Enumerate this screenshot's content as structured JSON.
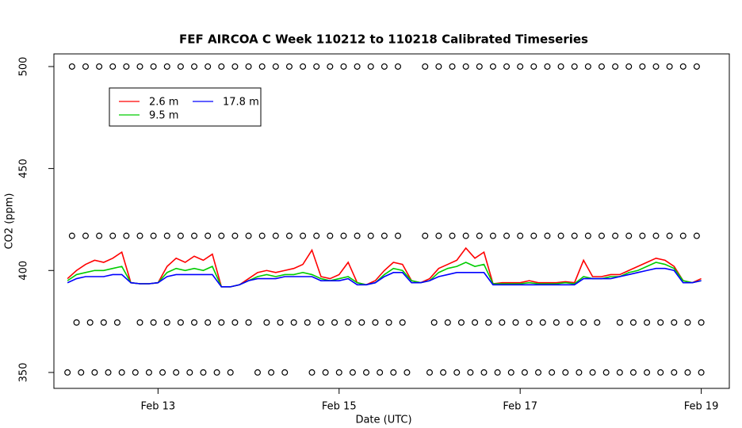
{
  "chart_data": {
    "type": "line",
    "title": "FEF AIRCOA C  Week 110212 to 110218  Calibrated Timeseries",
    "x_label": "Date (UTC)",
    "y_label": "CO2 (ppm)",
    "xlim": [
      11.85,
      19.31
    ],
    "ylim": [
      342.2,
      506.2
    ],
    "xticks": [
      {
        "value": 13,
        "label": "Feb 13"
      },
      {
        "value": 15,
        "label": "Feb 15"
      },
      {
        "value": 17,
        "label": "Feb 17"
      },
      {
        "value": 19,
        "label": "Feb 19"
      }
    ],
    "yticks": [
      350,
      400,
      450,
      500
    ],
    "legend": "topleft",
    "x": [
      12.0,
      12.1,
      12.2,
      12.3,
      12.4,
      12.5,
      12.6,
      12.7,
      12.8,
      12.9,
      13.0,
      13.1,
      13.2,
      13.3,
      13.4,
      13.5,
      13.6,
      13.7,
      13.8,
      13.9,
      14.0,
      14.1,
      14.2,
      14.3,
      14.4,
      14.5,
      14.6,
      14.7,
      14.8,
      14.9,
      15.0,
      15.1,
      15.2,
      15.3,
      15.4,
      15.5,
      15.6,
      15.7,
      15.8,
      15.9,
      16.0,
      16.1,
      16.2,
      16.3,
      16.4,
      16.5,
      16.6,
      16.7,
      16.8,
      16.9,
      17.0,
      17.1,
      17.2,
      17.3,
      17.4,
      17.5,
      17.6,
      17.7,
      17.8,
      17.9,
      18.0,
      18.1,
      18.2,
      18.3,
      18.4,
      18.5,
      18.6,
      18.7,
      18.8,
      18.9,
      19.0
    ],
    "series": [
      {
        "name": "2.6 m",
        "color": "#ff0000",
        "mode": "line",
        "values": [
          396,
          400,
          403,
          405,
          404,
          406,
          409,
          394,
          393.5,
          393.5,
          394,
          402,
          406,
          404,
          407,
          405,
          408,
          392,
          392,
          393,
          396,
          399,
          400,
          399,
          400,
          401,
          403,
          410,
          397,
          396,
          398,
          404,
          394,
          393,
          395,
          400,
          404,
          403,
          395,
          394,
          396,
          401,
          403,
          405,
          411,
          406,
          409,
          393.5,
          394,
          394,
          394,
          395,
          394,
          394,
          394,
          394.5,
          394,
          405,
          397,
          397,
          398,
          398,
          400,
          402,
          404,
          406,
          405,
          402,
          395,
          394,
          396
        ]
      },
      {
        "name": "9.5 m",
        "color": "#00cc00",
        "mode": "line",
        "values": [
          395,
          398,
          399,
          400,
          400,
          401,
          402,
          394,
          393.5,
          393.5,
          394,
          399,
          401,
          400,
          401,
          400,
          402,
          392,
          392,
          393,
          395,
          397,
          398,
          397,
          398,
          398,
          399,
          398,
          396,
          395,
          396,
          397,
          394,
          393,
          394,
          398,
          401,
          400,
          395,
          394,
          395,
          399,
          401,
          402,
          404,
          402,
          403,
          393.5,
          393.5,
          393.5,
          393.5,
          394,
          393.5,
          393.5,
          393.5,
          394,
          393.5,
          397,
          396,
          396,
          397,
          397,
          399,
          400,
          402,
          404,
          403,
          401,
          395,
          394,
          395
        ]
      },
      {
        "name": "17.8 m",
        "color": "#0000ff",
        "mode": "line",
        "values": [
          394,
          396,
          397,
          397,
          397,
          398,
          398,
          394,
          393.5,
          393.5,
          394,
          397,
          398,
          398,
          398,
          398,
          398,
          392,
          392,
          393,
          395,
          396,
          396,
          396,
          397,
          397,
          397,
          397,
          395,
          395,
          395,
          396,
          393,
          393,
          394,
          397,
          399,
          399,
          394,
          394,
          395,
          397,
          398,
          399,
          399,
          399,
          399,
          393,
          393,
          393,
          393,
          393,
          393,
          393,
          393,
          393,
          393,
          396,
          396,
          396,
          396,
          397,
          398,
          399,
          400,
          401,
          401,
          400,
          394,
          394,
          395
        ]
      },
      {
        "color": "#000000",
        "mode": "points",
        "x": [
          12.05,
          12.2,
          12.35,
          12.5,
          12.65,
          12.8,
          12.95,
          13.1,
          13.25,
          13.4,
          13.55,
          13.7,
          13.85,
          14.0,
          14.15,
          14.3,
          14.45,
          14.6,
          14.75,
          14.9,
          15.05,
          15.2,
          15.35,
          15.5,
          15.65,
          15.95,
          16.1,
          16.25,
          16.4,
          16.55,
          16.7,
          16.85,
          17.0,
          17.15,
          17.3,
          17.45,
          17.6,
          17.75,
          17.9,
          18.05,
          18.2,
          18.35,
          18.5,
          18.65,
          18.8,
          18.95
        ],
        "values": [
          500,
          500,
          500,
          500,
          500,
          500,
          500,
          500,
          500,
          500,
          500,
          500,
          500,
          500,
          500,
          500,
          500,
          500,
          500,
          500,
          500,
          500,
          500,
          500,
          500,
          500,
          500,
          500,
          500,
          500,
          500,
          500,
          500,
          500,
          500,
          500,
          500,
          500,
          500,
          500,
          500,
          500,
          500,
          500,
          500,
          500
        ]
      },
      {
        "color": "#000000",
        "mode": "points",
        "x": [
          12.05,
          12.2,
          12.35,
          12.5,
          12.65,
          12.8,
          12.95,
          13.1,
          13.25,
          13.4,
          13.55,
          13.7,
          13.85,
          14.0,
          14.15,
          14.3,
          14.45,
          14.6,
          14.75,
          14.9,
          15.05,
          15.2,
          15.35,
          15.5,
          15.65,
          15.95,
          16.1,
          16.25,
          16.4,
          16.55,
          16.7,
          16.85,
          17.0,
          17.15,
          17.3,
          17.45,
          17.6,
          17.75,
          17.9,
          18.05,
          18.2,
          18.35,
          18.5,
          18.65,
          18.8,
          18.95
        ],
        "values": [
          417,
          417,
          417,
          417,
          417,
          417,
          417,
          417,
          417,
          417,
          417,
          417,
          417,
          417,
          417,
          417,
          417,
          417,
          417,
          417,
          417,
          417,
          417,
          417,
          417,
          417,
          417,
          417,
          417,
          417,
          417,
          417,
          417,
          417,
          417,
          417,
          417,
          417,
          417,
          417,
          417,
          417,
          417,
          417,
          417,
          417
        ]
      },
      {
        "color": "#000000",
        "mode": "points",
        "x": [
          12.1,
          12.25,
          12.4,
          12.55,
          12.8,
          12.95,
          13.1,
          13.25,
          13.4,
          13.55,
          13.7,
          13.85,
          14.0,
          14.2,
          14.35,
          14.5,
          14.65,
          14.8,
          14.95,
          15.1,
          15.25,
          15.4,
          15.55,
          15.7,
          16.05,
          16.2,
          16.35,
          16.5,
          16.65,
          16.8,
          16.95,
          17.1,
          17.25,
          17.4,
          17.55,
          17.7,
          17.85,
          18.1,
          18.25,
          18.4,
          18.55,
          18.7,
          18.85,
          19.0
        ],
        "values": [
          374.5,
          374.5,
          374.5,
          374.5,
          374.5,
          374.5,
          374.5,
          374.5,
          374.5,
          374.5,
          374.5,
          374.5,
          374.5,
          374.5,
          374.5,
          374.5,
          374.5,
          374.5,
          374.5,
          374.5,
          374.5,
          374.5,
          374.5,
          374.5,
          374.5,
          374.5,
          374.5,
          374.5,
          374.5,
          374.5,
          374.5,
          374.5,
          374.5,
          374.5,
          374.5,
          374.5,
          374.5,
          374.5,
          374.5,
          374.5,
          374.5,
          374.5,
          374.5,
          374.5
        ]
      },
      {
        "color": "#000000",
        "mode": "points",
        "x": [
          12.0,
          12.15,
          12.3,
          12.45,
          12.6,
          12.75,
          12.9,
          13.05,
          13.2,
          13.35,
          13.5,
          13.65,
          13.8,
          14.1,
          14.25,
          14.4,
          14.7,
          14.85,
          15.0,
          15.15,
          15.3,
          15.45,
          15.6,
          15.75,
          16.0,
          16.15,
          16.3,
          16.45,
          16.6,
          16.75,
          16.9,
          17.05,
          17.2,
          17.35,
          17.5,
          17.65,
          17.8,
          17.95,
          18.1,
          18.25,
          18.4,
          18.55,
          18.7,
          18.85,
          19.0
        ],
        "values": [
          350,
          350,
          350,
          350,
          350,
          350,
          350,
          350,
          350,
          350,
          350,
          350,
          350,
          350,
          350,
          350,
          350,
          350,
          350,
          350,
          350,
          350,
          350,
          350,
          350,
          350,
          350,
          350,
          350,
          350,
          350,
          350,
          350,
          350,
          350,
          350,
          350,
          350,
          350,
          350,
          350,
          350,
          350,
          350,
          350
        ]
      }
    ]
  }
}
